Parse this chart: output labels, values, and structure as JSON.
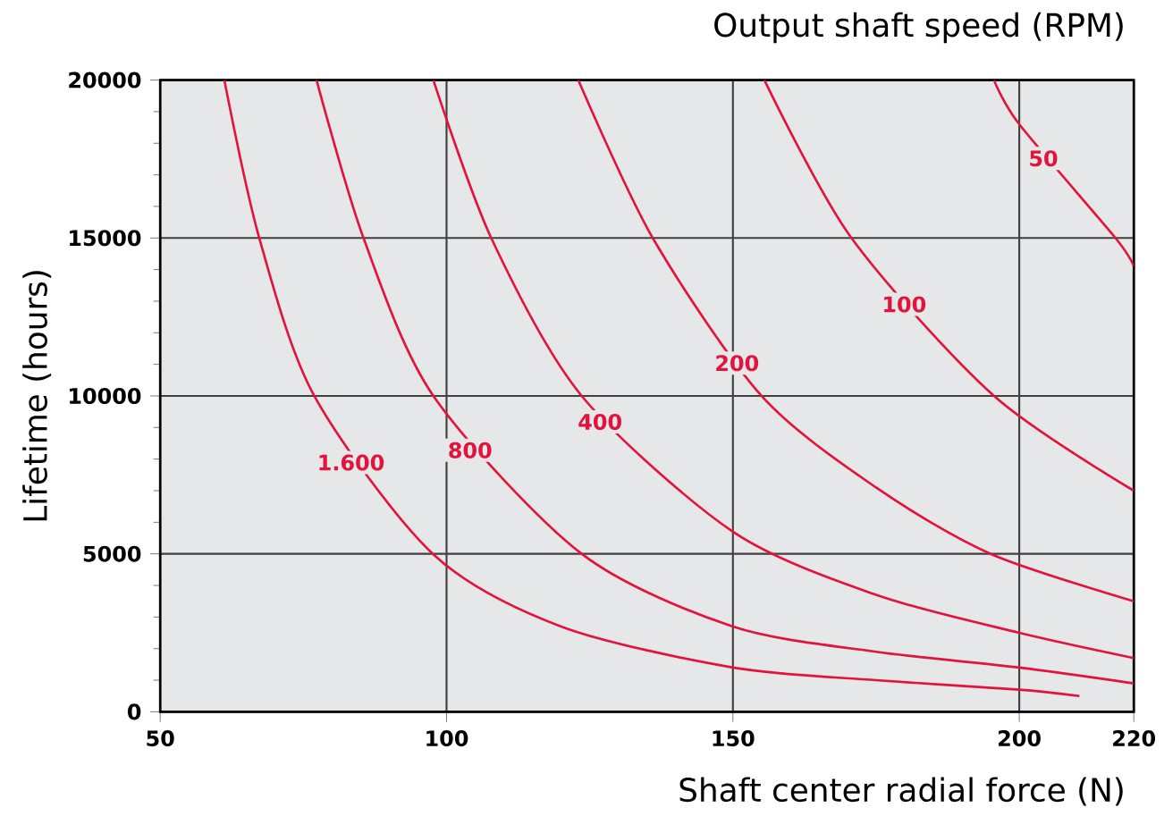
{
  "chart_data": {
    "type": "line",
    "title": "Output shaft speed (RPM)",
    "xlabel": "Shaft center radial force (N)",
    "ylabel": "Lifetime (hours)",
    "xlim": [
      50,
      220
    ],
    "xticks": [
      50,
      100,
      150,
      200,
      220
    ],
    "ylim": [
      0,
      20000
    ],
    "yticks": [
      0,
      5000,
      10000,
      15000,
      20000
    ],
    "grid": true,
    "series": [
      {
        "color": "#e2133c",
        "x": [
          61.2,
          67.3,
          76.9,
          97.6,
          120,
          150,
          175,
          200,
          210.5
        ],
        "values": [
          20000,
          15000,
          10000,
          5000,
          2700,
          1400,
          1000,
          700,
          500
        ]
      },
      {
        "color": "#e2133c",
        "x": [
          77.3,
          85.5,
          97.7,
          123.6,
          150,
          175,
          200,
          220
        ],
        "values": [
          20000,
          15000,
          10000,
          5000,
          2700,
          1900,
          1400,
          900
        ]
      },
      {
        "color": "#e2133c",
        "x": [
          97.7,
          107.8,
          123.6,
          150,
          175,
          200,
          220
        ],
        "values": [
          20000,
          15000,
          10000,
          5700,
          3700,
          2500,
          1700
        ]
      },
      {
        "color": "#e2133c",
        "x": [
          123,
          136,
          155,
          175,
          195,
          220
        ],
        "values": [
          20000,
          15000,
          10000,
          7100,
          5000,
          3500
        ]
      },
      {
        "color": "#e2133c",
        "x": [
          155.5,
          170.7,
          195.6,
          220
        ],
        "values": [
          20000,
          15000,
          10000,
          7000
        ]
      },
      {
        "color": "#e2133c",
        "x": [
          195.6,
          200,
          216.8,
          220
        ],
        "values": [
          20000,
          18600,
          15000,
          14100
        ]
      }
    ],
    "annotations": [
      {
        "text": "1.600",
        "x": 83.3,
        "y": 7890
      },
      {
        "text": "800",
        "x": 104.1,
        "y": 8280
      },
      {
        "text": "400",
        "x": 126.8,
        "y": 9180
      },
      {
        "text": "200",
        "x": 150.7,
        "y": 11040
      },
      {
        "text": "100",
        "x": 179.9,
        "y": 12900
      },
      {
        "text": "50",
        "x": 204.2,
        "y": 17520
      }
    ]
  }
}
